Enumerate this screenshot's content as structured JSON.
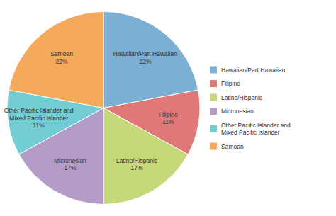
{
  "chart_data": {
    "type": "pie",
    "categories": [
      "Hawaiian/Part Hawaiian",
      "Filipino",
      "Latino/Hispanic",
      "Micronesian",
      "Other Pacific Islander and\nMixed Pacific Islander",
      "Samoan"
    ],
    "values": [
      22,
      11,
      17,
      17,
      11,
      22
    ],
    "value_labels": [
      "22%",
      "11%",
      "17%",
      "17%",
      "11%",
      "22%"
    ],
    "data_labels": true,
    "colors": [
      "#7BAFD4",
      "#E07878",
      "#C5D97A",
      "#B59CC8",
      "#72CDD4",
      "#F5A95A"
    ],
    "legend": "right"
  }
}
